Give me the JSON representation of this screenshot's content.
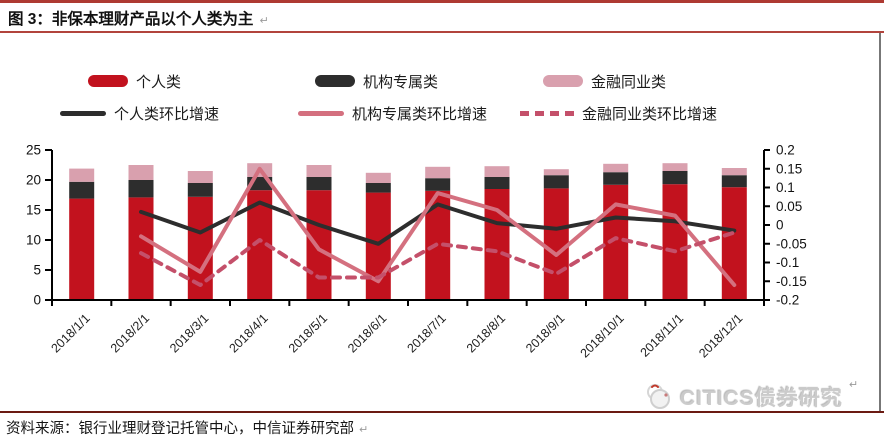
{
  "header": {
    "title": "图 3：非保本理财产品以个人类为主",
    "return_mark": "↵"
  },
  "legend": {
    "row1": [
      {
        "label": "个人类",
        "swatch": "bar",
        "color": "#C2121E"
      },
      {
        "label": "机构专属类",
        "swatch": "bar",
        "color": "#2D2D2D"
      },
      {
        "label": "金融同业类",
        "swatch": "bar",
        "color": "#D9A0AE"
      }
    ],
    "row2": [
      {
        "label": "个人类环比增速",
        "swatch": "line",
        "color": "#2D2D2D"
      },
      {
        "label": "机构专属类环比增速",
        "swatch": "line",
        "color": "#D4707F"
      },
      {
        "label": "金融同业类环比增速",
        "swatch": "dashed-line",
        "color": "#C4506A"
      }
    ]
  },
  "chart_data": {
    "type": "bar",
    "subtype": "stacked-bar-with-lines",
    "grid": false,
    "legend_position": "top",
    "categories": [
      "2018/1/1",
      "2018/2/1",
      "2018/3/1",
      "2018/4/1",
      "2018/5/1",
      "2018/6/1",
      "2018/7/1",
      "2018/8/1",
      "2018/9/1",
      "2018/10/1",
      "2018/11/1",
      "2018/12/1"
    ],
    "bar_series": [
      {
        "name": "个人类",
        "color": "#C2121E",
        "values": [
          16.9,
          17.1,
          17.2,
          18.3,
          18.3,
          17.9,
          18.2,
          18.5,
          18.6,
          19.2,
          19.3,
          18.8
        ]
      },
      {
        "name": "机构专属类",
        "color": "#2D2D2D",
        "values": [
          2.8,
          2.9,
          2.3,
          2.2,
          2.2,
          1.6,
          2.1,
          2.0,
          2.2,
          2.1,
          2.2,
          2.0
        ]
      },
      {
        "name": "金融同业类",
        "color": "#D9A0AE",
        "values": [
          2.2,
          2.5,
          2.0,
          2.3,
          2.0,
          1.7,
          1.9,
          1.8,
          1.0,
          1.4,
          1.3,
          1.2
        ]
      }
    ],
    "line_series": [
      {
        "name": "个人类环比增速",
        "color": "#2D2D2D",
        "dash": false,
        "values": [
          null,
          0.035,
          -0.02,
          0.06,
          0.0,
          -0.05,
          0.055,
          0.005,
          -0.01,
          0.02,
          0.01,
          -0.015
        ]
      },
      {
        "name": "机构专属类环比增速",
        "color": "#D4707F",
        "dash": false,
        "values": [
          null,
          -0.03,
          -0.125,
          0.15,
          -0.065,
          -0.15,
          0.085,
          0.04,
          -0.08,
          0.055,
          0.025,
          -0.16
        ]
      },
      {
        "name": "金融同业类环比增速",
        "color": "#C4506A",
        "dash": true,
        "values": [
          null,
          -0.075,
          -0.16,
          -0.04,
          -0.14,
          -0.14,
          -0.05,
          -0.07,
          -0.13,
          -0.035,
          -0.07,
          -0.02
        ]
      }
    ],
    "left_axis": {
      "min": 0,
      "max": 25,
      "ticks": [
        0,
        5,
        10,
        15,
        20,
        25
      ]
    },
    "right_axis": {
      "min": -0.2,
      "max": 0.2,
      "ticks": [
        0.2,
        0.15,
        0.1,
        0.05,
        0,
        -0.05,
        -0.1,
        -0.15,
        -0.2
      ],
      "tick_labels": [
        "0.2",
        "0.15",
        "0.1",
        "0.05",
        "0",
        "-0.05",
        "-0.1",
        "-0.15",
        "-0.2"
      ]
    }
  },
  "footer": {
    "source": "资料来源：银行业理财登记托管中心，中信证券研究部",
    "logo_text": "CITICS债券研究",
    "return_mark": "↵"
  },
  "colors": {
    "bar_red": "#C2121E",
    "bar_black": "#2D2D2D",
    "bar_pink": "#D9A0AE",
    "line_pink_solid": "#D4707F",
    "line_pink_dashed": "#C4506A",
    "rule_top": "#AE3A32",
    "rule_bottom": "#6B1A12",
    "axis": "#000000",
    "logo_gray": "#CBCBCB"
  }
}
